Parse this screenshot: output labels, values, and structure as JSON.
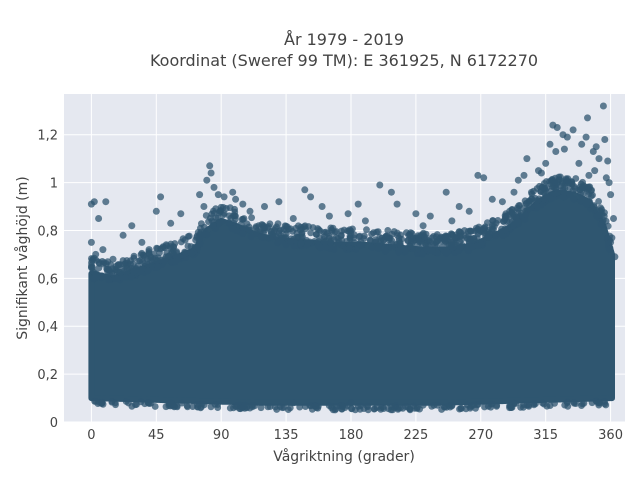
{
  "chart_data": {
    "type": "scatter",
    "title": "År 1979 - 2019",
    "subtitle": "Koordinat (Sweref 99 TM): E 361925, N 6172270",
    "xlabel": "Vågriktning (grader)",
    "ylabel": "Signifikant våghöjd (m)",
    "xlim": [
      -19,
      370
    ],
    "ylim": [
      0,
      1.37
    ],
    "x_ticks": [
      0,
      45,
      90,
      135,
      180,
      225,
      270,
      315,
      360
    ],
    "x_tick_labels": [
      "0",
      "45",
      "90",
      "135",
      "180",
      "225",
      "270",
      "315",
      "360"
    ],
    "y_ticks": [
      0,
      0.2,
      0.4,
      0.6,
      0.8,
      1.0,
      1.2
    ],
    "y_tick_labels": [
      "0",
      "0,2",
      "0,4",
      "0,6",
      "0,8",
      "1",
      "1,2"
    ],
    "grid": true,
    "colors": {
      "marker": "#2f5670",
      "plot_bg": "#e5e8f0",
      "grid": "#ffffff"
    },
    "series": [
      {
        "points": [
          [
            0,
            0.91
          ],
          [
            2,
            0.92
          ],
          [
            10,
            0.92
          ],
          [
            5,
            0.85
          ],
          [
            8,
            0.72
          ],
          [
            22,
            0.78
          ],
          [
            28,
            0.82
          ],
          [
            35,
            0.75
          ],
          [
            48,
            0.94
          ],
          [
            45,
            0.88
          ],
          [
            55,
            0.83
          ],
          [
            62,
            0.87
          ],
          [
            75,
            0.95
          ],
          [
            78,
            0.9
          ],
          [
            82,
            1.07
          ],
          [
            83,
            1.04
          ],
          [
            80,
            1.01
          ],
          [
            85,
            0.98
          ],
          [
            88,
            0.95
          ],
          [
            92,
            0.94
          ],
          [
            98,
            0.96
          ],
          [
            100,
            0.93
          ],
          [
            105,
            0.91
          ],
          [
            110,
            0.88
          ],
          [
            120,
            0.9
          ],
          [
            130,
            0.92
          ],
          [
            148,
            0.97
          ],
          [
            152,
            0.94
          ],
          [
            160,
            0.9
          ],
          [
            165,
            0.86
          ],
          [
            178,
            0.87
          ],
          [
            185,
            0.91
          ],
          [
            200,
            0.99
          ],
          [
            208,
            0.96
          ],
          [
            212,
            0.91
          ],
          [
            225,
            0.87
          ],
          [
            235,
            0.86
          ],
          [
            246,
            0.96
          ],
          [
            255,
            0.9
          ],
          [
            262,
            0.88
          ],
          [
            268,
            1.03
          ],
          [
            272,
            1.02
          ],
          [
            278,
            0.93
          ],
          [
            285,
            0.92
          ],
          [
            293,
            0.96
          ],
          [
            296,
            1.01
          ],
          [
            300,
            1.03
          ],
          [
            302,
            1.1
          ],
          [
            310,
            1.05
          ],
          [
            315,
            1.08
          ],
          [
            318,
            1.16
          ],
          [
            320,
            1.24
          ],
          [
            323,
            1.23
          ],
          [
            327,
            1.2
          ],
          [
            330,
            1.19
          ],
          [
            334,
            1.22
          ],
          [
            340,
            1.16
          ],
          [
            343,
            1.19
          ],
          [
            344,
            1.27
          ],
          [
            348,
            1.13
          ],
          [
            350,
            1.15
          ],
          [
            352,
            1.1
          ],
          [
            355,
            1.32
          ],
          [
            356,
            1.18
          ],
          [
            358,
            1.09
          ],
          [
            357,
            1.02
          ],
          [
            359,
            1.0
          ],
          [
            360,
            0.95
          ],
          [
            362,
            0.85
          ],
          [
            360,
            0.75
          ],
          [
            363,
            0.69
          ],
          [
            338,
            1.08
          ],
          [
            328,
            1.14
          ],
          [
            322,
            1.13
          ],
          [
            312,
            1.04
          ],
          [
            345,
            1.03
          ],
          [
            349,
            1.05
          ],
          [
            0,
            0.75
          ],
          [
            3,
            0.7
          ],
          [
            15,
            0.68
          ],
          [
            40,
            0.72
          ],
          [
            65,
            0.76
          ],
          [
            140,
            0.85
          ],
          [
            190,
            0.84
          ],
          [
            230,
            0.82
          ],
          [
            250,
            0.84
          ],
          [
            290,
            0.88
          ],
          [
            240,
            0.07
          ],
          [
            250,
            0.07
          ],
          [
            290,
            0.06
          ],
          [
            140,
            0.08
          ],
          [
            180,
            0.08
          ],
          [
            210,
            0.06
          ],
          [
            230,
            0.07
          ]
        ]
      }
    ],
    "density": {
      "note": "dense core of many thousands of points",
      "upper_envelope": [
        [
          0,
          0.62
        ],
        [
          15,
          0.6
        ],
        [
          30,
          0.63
        ],
        [
          45,
          0.66
        ],
        [
          60,
          0.69
        ],
        [
          72,
          0.72
        ],
        [
          80,
          0.8
        ],
        [
          90,
          0.84
        ],
        [
          100,
          0.82
        ],
        [
          115,
          0.78
        ],
        [
          130,
          0.76
        ],
        [
          150,
          0.75
        ],
        [
          170,
          0.74
        ],
        [
          190,
          0.74
        ],
        [
          210,
          0.73
        ],
        [
          230,
          0.72
        ],
        [
          250,
          0.72
        ],
        [
          265,
          0.74
        ],
        [
          280,
          0.78
        ],
        [
          295,
          0.83
        ],
        [
          310,
          0.92
        ],
        [
          322,
          0.96
        ],
        [
          335,
          0.95
        ],
        [
          345,
          0.92
        ],
        [
          355,
          0.82
        ],
        [
          361,
          0.7
        ]
      ],
      "lower_envelope": [
        [
          0,
          0.1
        ],
        [
          60,
          0.09
        ],
        [
          120,
          0.08
        ],
        [
          180,
          0.08
        ],
        [
          240,
          0.08
        ],
        [
          300,
          0.09
        ],
        [
          361,
          0.1
        ]
      ]
    }
  }
}
